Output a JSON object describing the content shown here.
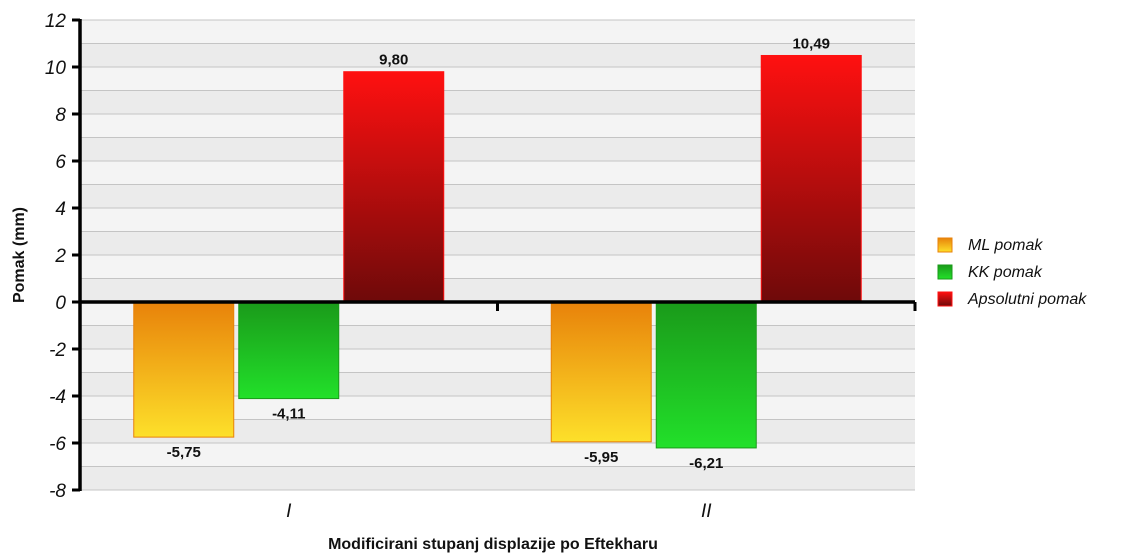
{
  "chart_data": {
    "type": "bar",
    "categories": [
      "I",
      "II"
    ],
    "series": [
      {
        "name": "ML pomak",
        "values": [
          -5.75,
          -5.95
        ],
        "labels": [
          "-5,75",
          "-5,95"
        ],
        "color_top": "#e8820a",
        "color_bottom": "#fde02a"
      },
      {
        "name": "KK pomak",
        "values": [
          -4.11,
          -6.21
        ],
        "labels": [
          "-4,11",
          "-6,21"
        ],
        "color_top": "#1a9a1a",
        "color_bottom": "#22e02a"
      },
      {
        "name": "Apsolutni pomak",
        "values": [
          9.8,
          10.49
        ],
        "labels": [
          "9,80",
          "10,49"
        ],
        "color_top": "#ff1010",
        "color_bottom": "#6e0a0a"
      }
    ],
    "xlabel": "Modificirani stupanj displazije po Eftekharu",
    "ylabel": "Pomak (mm)",
    "ylim": [
      -8,
      12
    ],
    "yticks": [
      {
        "value": 12,
        "label": "12"
      },
      {
        "value": 10,
        "label": "10"
      },
      {
        "value": 8,
        "label": "8"
      },
      {
        "value": 6,
        "label": "6"
      },
      {
        "value": 4,
        "label": "4"
      },
      {
        "value": 2,
        "label": "2"
      },
      {
        "value": 0,
        "label": "0"
      },
      {
        "value": -2,
        "label": "-2"
      },
      {
        "value": -4,
        "label": "-4"
      },
      {
        "value": -6,
        "label": "-6"
      },
      {
        "value": -8,
        "label": "-8"
      }
    ],
    "grid": true,
    "legend_position": "right"
  }
}
